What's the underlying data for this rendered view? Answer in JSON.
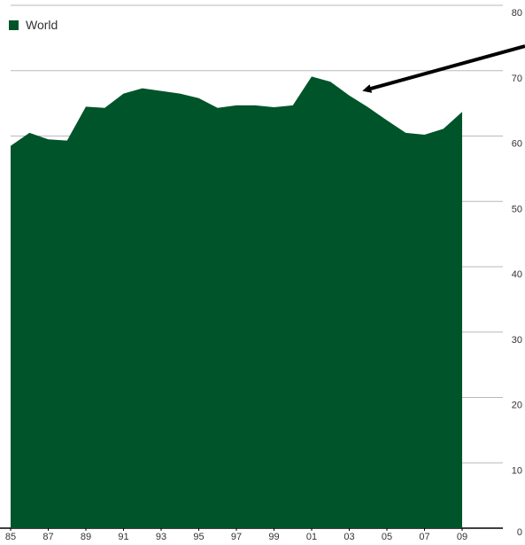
{
  "chart_data": {
    "type": "area",
    "title": "",
    "xlabel": "",
    "ylabel": "",
    "x": [
      1985,
      1986,
      1987,
      1988,
      1989,
      1990,
      1991,
      1992,
      1993,
      1994,
      1995,
      1996,
      1997,
      1998,
      1999,
      2000,
      2001,
      2002,
      2003,
      2004,
      2005,
      2006,
      2007,
      2008,
      2009
    ],
    "x_tick_labels": [
      "85",
      "87",
      "89",
      "91",
      "93",
      "95",
      "97",
      "99",
      "01",
      "03",
      "05",
      "07",
      "09"
    ],
    "x_tick_values": [
      1985,
      1987,
      1989,
      1991,
      1993,
      1995,
      1997,
      1999,
      2001,
      2003,
      2005,
      2007,
      2009
    ],
    "y_ticks": [
      0,
      10,
      20,
      30,
      40,
      50,
      60,
      70,
      80
    ],
    "ylim": [
      0,
      80
    ],
    "xlim": [
      1985,
      2009
    ],
    "y_axis_position": "right",
    "grid": "horizontal",
    "legend_placement": "top-left",
    "series": [
      {
        "name": "World",
        "color": "#00542a",
        "values": [
          58.5,
          60.5,
          59.5,
          59.3,
          64.5,
          64.3,
          66.5,
          67.3,
          66.9,
          66.5,
          65.8,
          64.3,
          64.7,
          64.7,
          64.4,
          64.7,
          69.1,
          68.3,
          66.2,
          64.4,
          62.4,
          60.5,
          60.2,
          61.1,
          63.7
        ]
      }
    ],
    "annotation": {
      "type": "arrow",
      "points_to_x": 2003.5,
      "points_to_y": 66.5
    }
  }
}
